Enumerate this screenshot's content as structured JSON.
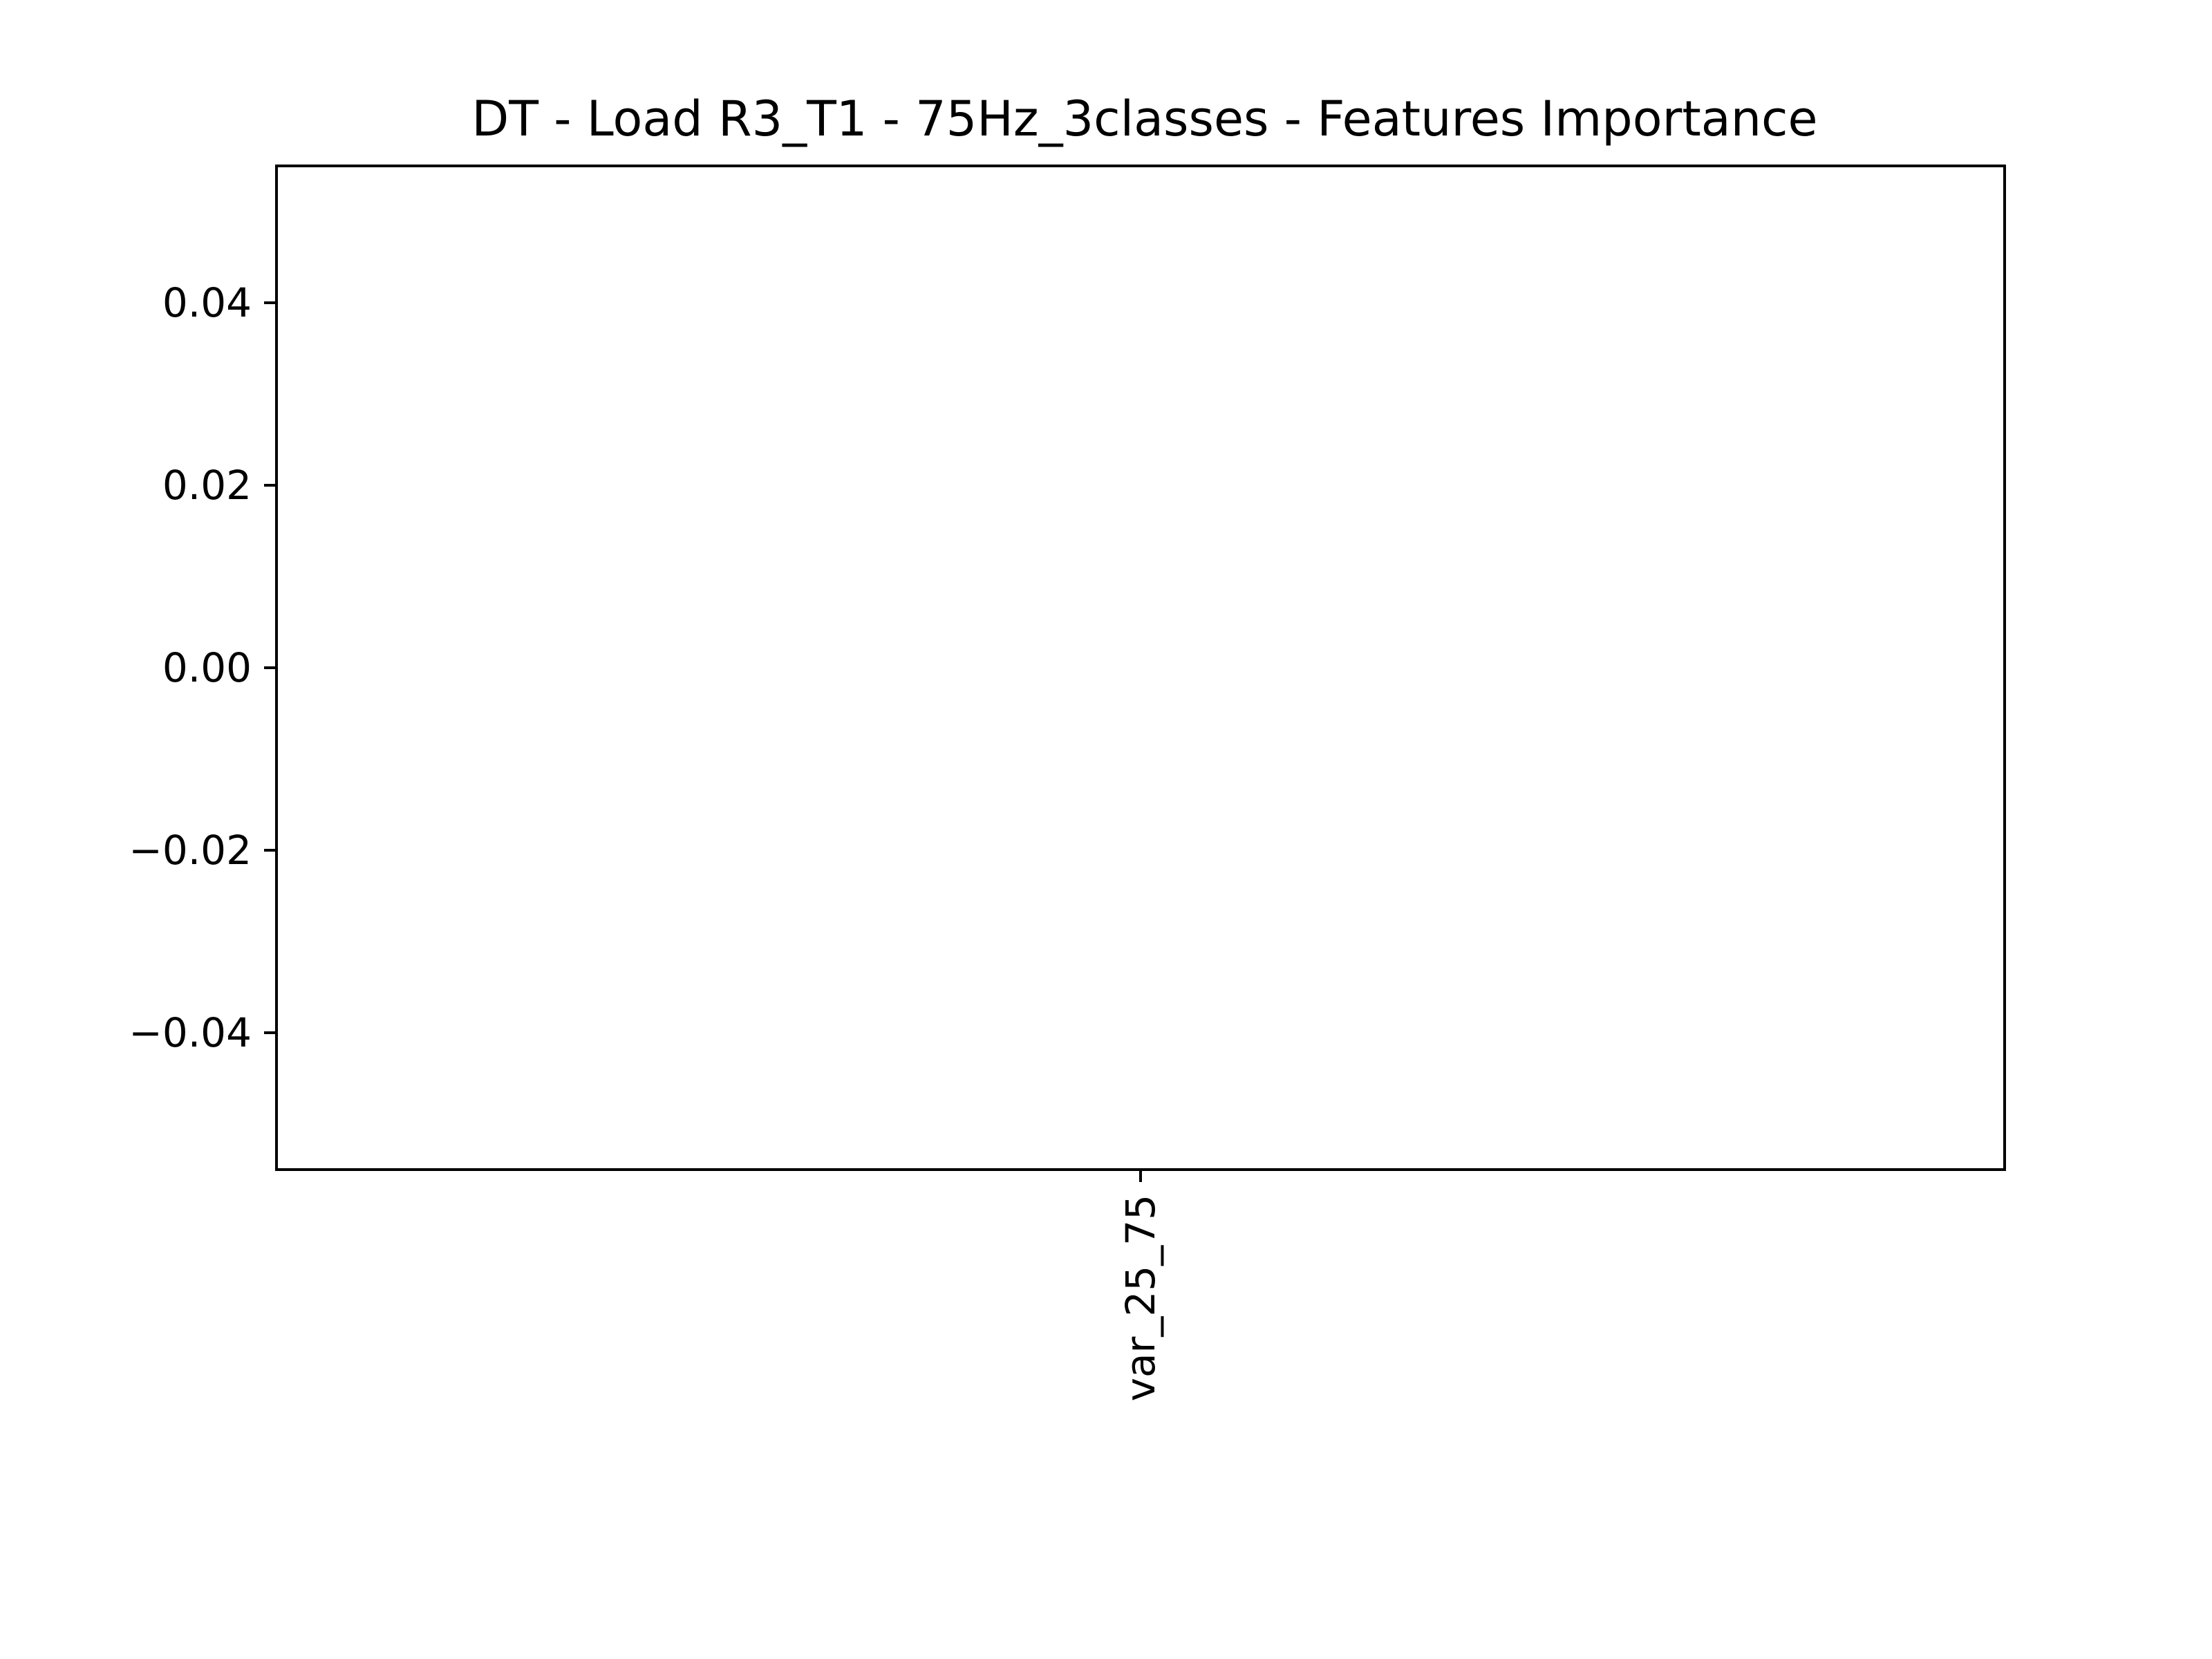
{
  "chart_data": {
    "type": "bar",
    "title": "DT - Load R3_T1 - 75Hz_3classes - Features Importance",
    "xlabel": "",
    "ylabel": "",
    "categories": [
      "var_25_75"
    ],
    "values": [
      0.0
    ],
    "ylim": [
      -0.055,
      0.055
    ],
    "yticks": [
      0.04,
      0.02,
      0.0,
      -0.02,
      -0.04
    ],
    "ytick_labels": [
      "0.04",
      "0.02",
      "0.00",
      "−0.02",
      "−0.04"
    ],
    "grid": false,
    "legend": "none",
    "colors": {
      "axis": "#000000",
      "background": "#ffffff",
      "bar": "#1f77b4"
    }
  }
}
